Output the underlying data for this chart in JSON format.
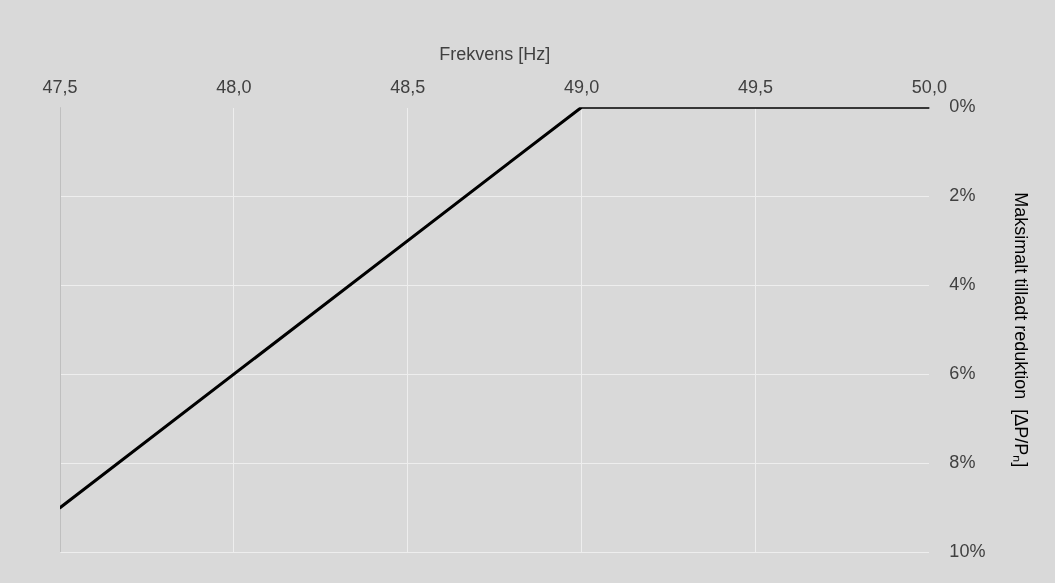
{
  "chart_data": {
    "type": "line",
    "xlabel": "Frekvens [Hz]",
    "ylabel": "Maksimalt tilladt reduktion  [ΔP/Pₙ]",
    "series": [
      {
        "color": "#000000",
        "x": [
          47.5,
          49.0,
          50.0
        ],
        "values": [
          9,
          0,
          0
        ]
      }
    ],
    "xlim": [
      47.5,
      50.0
    ],
    "xticks": [
      {
        "value": 47.5,
        "label": "47,5"
      },
      {
        "value": 48.0,
        "label": "48,0"
      },
      {
        "value": 48.5,
        "label": "48,5"
      },
      {
        "value": 49.0,
        "label": "49,0"
      },
      {
        "value": 49.5,
        "label": "49,5"
      },
      {
        "value": 50.0,
        "label": "50,0"
      }
    ],
    "ylim": [
      10,
      0
    ],
    "yticks": [
      {
        "value": 0,
        "label": "0%"
      },
      {
        "value": 2,
        "label": "2%"
      },
      {
        "value": 4,
        "label": "4%"
      },
      {
        "value": 6,
        "label": "6%"
      },
      {
        "value": 8,
        "label": "8%"
      },
      {
        "value": 10,
        "label": "10%"
      }
    ],
    "grid": true,
    "legend": false,
    "marker": "none",
    "line_style": "solid"
  }
}
